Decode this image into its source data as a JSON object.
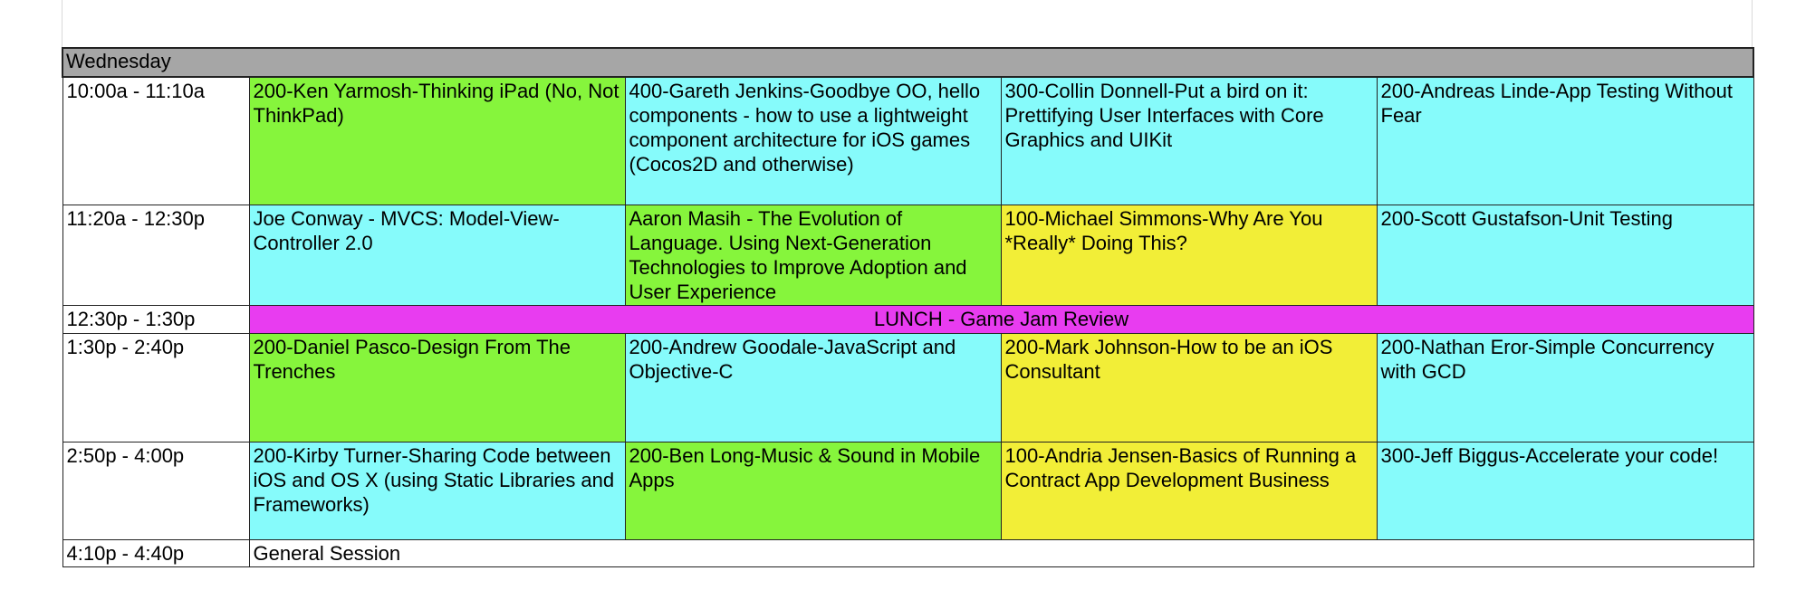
{
  "day": "Wednesday",
  "colors": {
    "green": "#86f53c",
    "cyan": "#86fbfb",
    "yellow": "#f2ee37",
    "magenta": "#e83cf0",
    "header_gray": "#a6a6a6"
  },
  "rows": [
    {
      "time": "10:00a - 11:10a",
      "sessions": [
        "200-Ken Yarmosh-Thinking iPad (No, Not ThinkPad)",
        "400-Gareth Jenkins-Goodbye OO, hello components - how to use a lightweight component architecture for iOS games (Cocos2D and otherwise)",
        "300-Collin Donnell-Put a bird on it: Prettifying User Interfaces with Core Graphics and UIKit",
        "200-Andreas Linde-App Testing Without Fear"
      ]
    },
    {
      "time": "11:20a - 12:30p",
      "sessions": [
        "Joe Conway - MVCS: Model-View-Controller 2.0",
        "Aaron Masih - The Evolution of Language. Using Next-Generation Technologies to Improve Adoption and User Experience",
        "100-Michael Simmons-Why Are You *Really* Doing This?",
        "200-Scott Gustafson-Unit Testing"
      ]
    },
    {
      "time": "12:30p - 1:30p",
      "span": "LUNCH - Game Jam Review"
    },
    {
      "time": "1:30p - 2:40p",
      "sessions": [
        "200-Daniel Pasco-Design From The Trenches",
        "200-Andrew Goodale-JavaScript and Objective-C",
        "200-Mark Johnson-How to be an iOS Consultant",
        "200-Nathan Eror-Simple Concurrency with GCD"
      ]
    },
    {
      "time": "2:50p - 4:00p",
      "sessions": [
        "200-Kirby Turner-Sharing Code between iOS and OS X (using Static Libraries and Frameworks)",
        "200-Ben Long-Music & Sound in Mobile Apps",
        "100-Andria Jensen-Basics of Running a Contract App Development Business",
        "300-Jeff Biggus-Accelerate your code!"
      ]
    },
    {
      "time": "4:10p - 4:40p",
      "span": "General Session"
    }
  ]
}
